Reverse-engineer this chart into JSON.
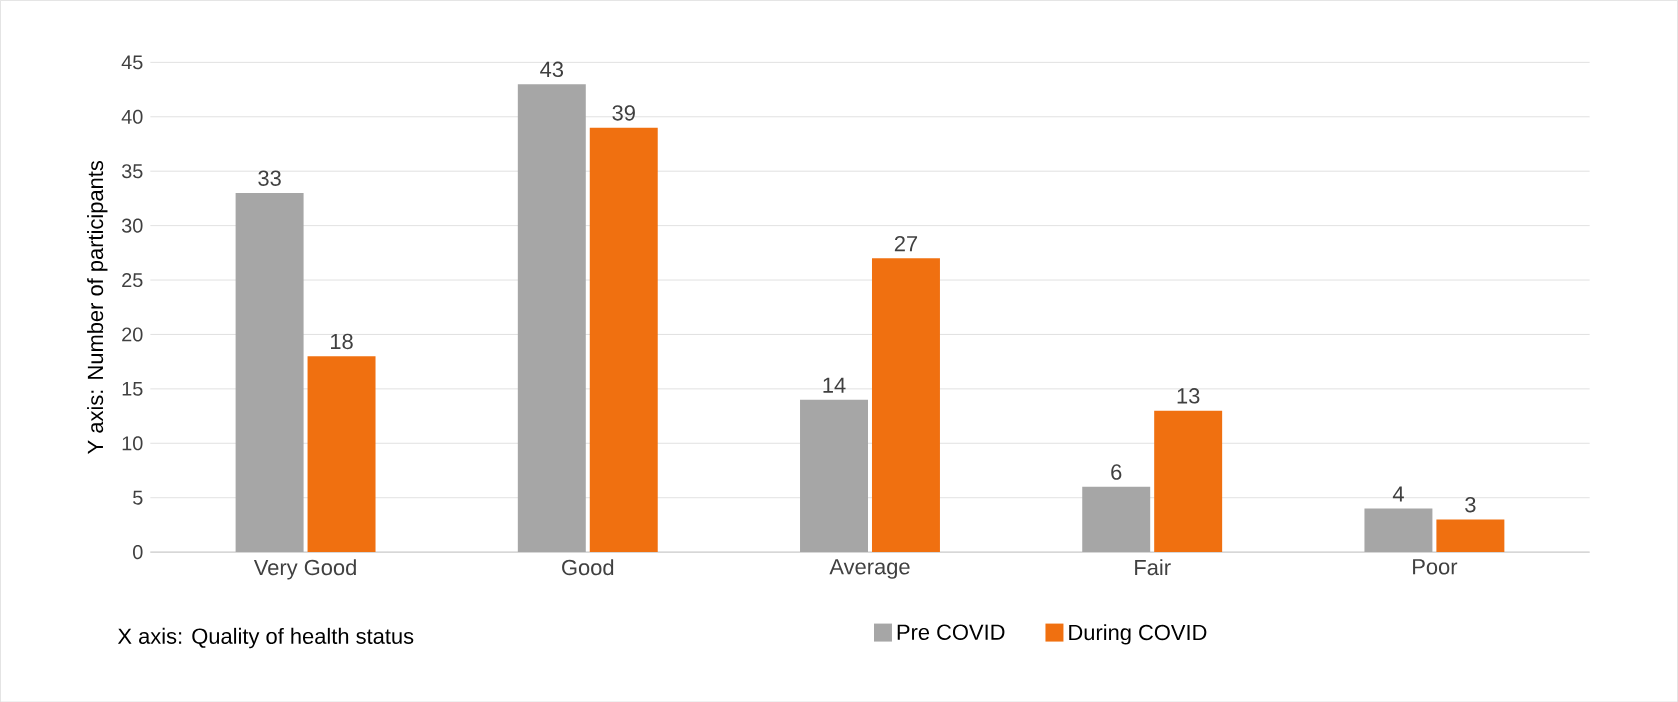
{
  "chart_data": {
    "type": "bar",
    "categories": [
      "Very Good",
      "Good",
      "Average",
      "Fair",
      "Poor"
    ],
    "series": [
      {
        "name": "Pre COVID",
        "color": "#a6a6a6",
        "values": [
          33,
          43,
          14,
          6,
          4
        ]
      },
      {
        "name": "During COVID",
        "color": "#f07010",
        "values": [
          18,
          39,
          27,
          13,
          3
        ]
      }
    ],
    "xlabel": "X axis: Quality of health status",
    "ylabel": "Y axis: Number of participants",
    "ylim": [
      0,
      45
    ],
    "yticks": [
      0,
      5,
      10,
      15,
      20,
      25,
      30,
      35,
      40,
      45
    ],
    "grid": "y",
    "legend": "bottom",
    "data_labels": true
  }
}
